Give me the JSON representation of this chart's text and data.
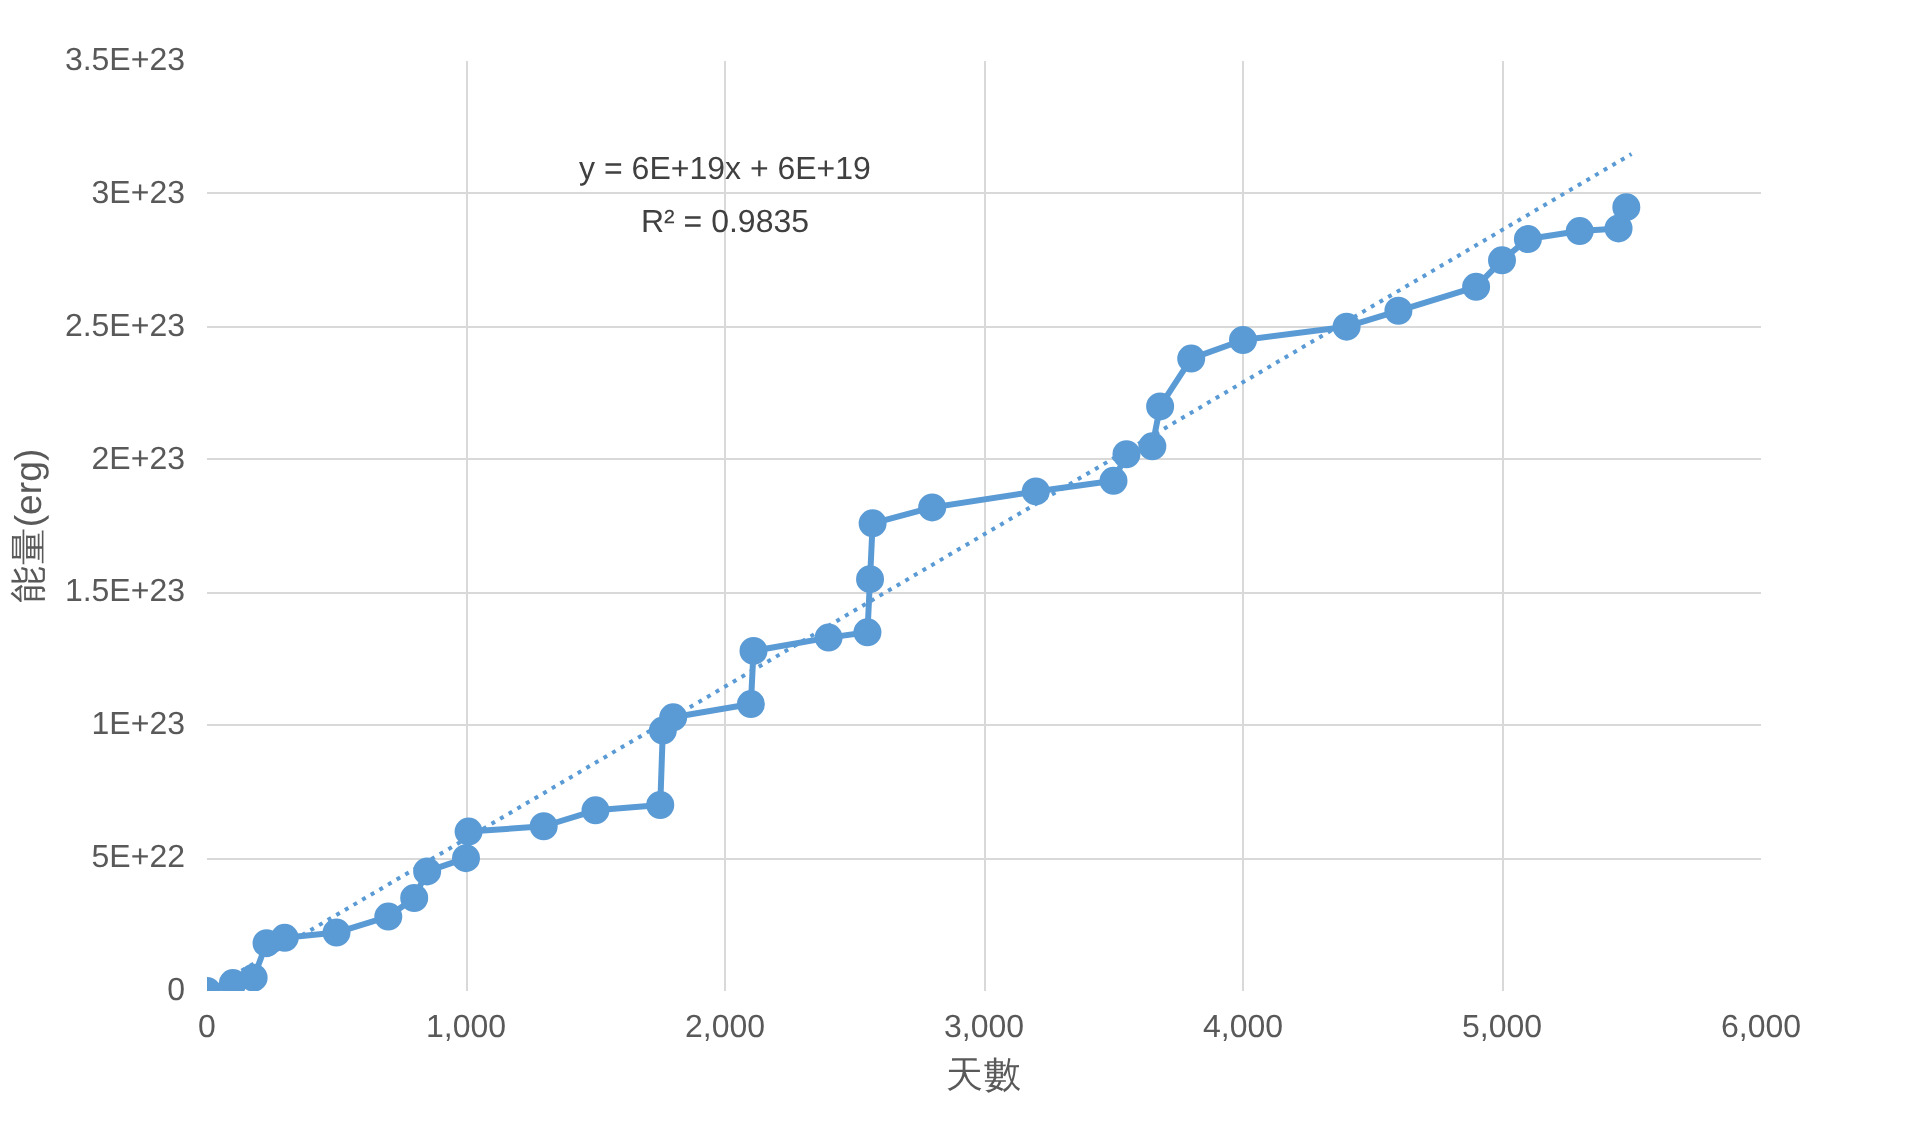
{
  "chart_data": {
    "type": "line",
    "xlabel": "天數",
    "ylabel": "能量(erg)",
    "annotations": [
      "y = 6E+19x + 6E+19",
      "R² = 0.9835"
    ],
    "series": [
      {
        "color": "#5b9bd5",
        "marker": "circle",
        "line_style": "solid",
        "x": [
          0,
          100,
          180,
          230,
          300,
          500,
          700,
          800,
          850,
          1000,
          1010,
          1300,
          1500,
          1750,
          1760,
          1800,
          2100,
          2110,
          2400,
          2550,
          2560,
          2570,
          2800,
          3200,
          3500,
          3550,
          3650,
          3680,
          3800,
          4000,
          4400,
          4600,
          4900,
          5000,
          5100,
          5300,
          5450,
          5480
        ],
        "values": [
          0,
          3e+21,
          5e+21,
          1.8e+22,
          2e+22,
          2.2e+22,
          2.8e+22,
          3.5e+22,
          4.5e+22,
          5e+22,
          6e+22,
          6.2e+22,
          6.8e+22,
          7e+22,
          9.8e+22,
          1.03e+23,
          1.08e+23,
          1.28e+23,
          1.33e+23,
          1.35e+23,
          1.55e+23,
          1.76e+23,
          1.82e+23,
          1.88e+23,
          1.92e+23,
          2.02e+23,
          2.05e+23,
          2.2e+23,
          2.38e+23,
          2.45e+23,
          2.5e+23,
          2.56e+23,
          2.65e+23,
          2.75e+23,
          2.83e+23,
          2.86e+23,
          2.87e+23,
          2.95e+23
        ]
      },
      {
        "color": "#5b9bd5",
        "marker": "none",
        "line_style": "dotted",
        "x": [
          0,
          5500
        ],
        "values": [
          0,
          3.15e+23
        ]
      }
    ],
    "xlim": [
      0,
      6000
    ],
    "ylim": [
      0,
      3.5e+23
    ],
    "xticks": [
      0,
      {
        "value": 1000,
        "label": "1,000"
      },
      {
        "value": 2000,
        "label": "2,000"
      },
      {
        "value": 3000,
        "label": "3,000"
      },
      {
        "value": 4000,
        "label": "4,000"
      },
      {
        "value": 5000,
        "label": "5,000"
      },
      {
        "value": 6000,
        "label": "6,000"
      }
    ],
    "yticks": [
      0,
      {
        "value": 5e+22,
        "label": "5E+22"
      },
      {
        "value": 1e+23,
        "label": "1E+23"
      },
      {
        "value": 1.5e+23,
        "label": "1.5E+23"
      },
      {
        "value": 2e+23,
        "label": "2E+23"
      },
      {
        "value": 2.5e+23,
        "label": "2.5E+23"
      },
      {
        "value": 3e+23,
        "label": "3E+23"
      },
      {
        "value": 3.5e+23,
        "label": "3.5E+23"
      }
    ],
    "grid": true
  }
}
